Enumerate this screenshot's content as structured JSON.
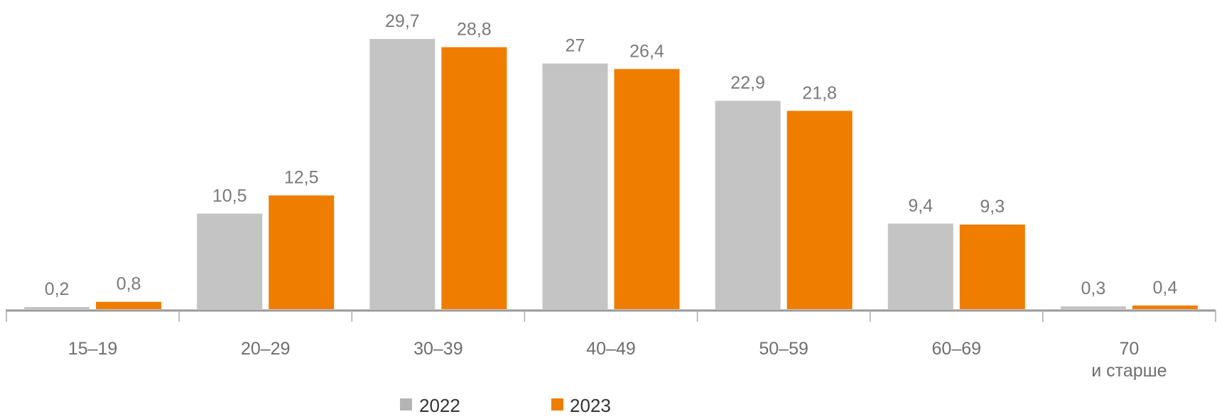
{
  "chart_data": {
    "type": "bar",
    "categories": [
      "15–19",
      "20–29",
      "30–39",
      "40–49",
      "50–59",
      "60–69",
      "70\nи старше"
    ],
    "series": [
      {
        "name": "2022",
        "color": "#c4c4c4",
        "values": [
          0.2,
          10.5,
          29.7,
          27,
          22.9,
          9.4,
          0.3
        ],
        "labels": [
          "0,2",
          "10,5",
          "29,7",
          "27",
          "22,9",
          "9,4",
          "0,3"
        ]
      },
      {
        "name": "2023",
        "color": "#ef7d00",
        "values": [
          0.8,
          12.5,
          28.8,
          26.4,
          21.8,
          9.3,
          0.4
        ],
        "labels": [
          "0,8",
          "12,5",
          "28,8",
          "26,4",
          "21,8",
          "9,3",
          "0,4"
        ]
      }
    ],
    "title": "",
    "xlabel": "",
    "ylabel": "",
    "ylim": [
      0,
      30
    ],
    "grid": false,
    "legend_position": "bottom"
  }
}
